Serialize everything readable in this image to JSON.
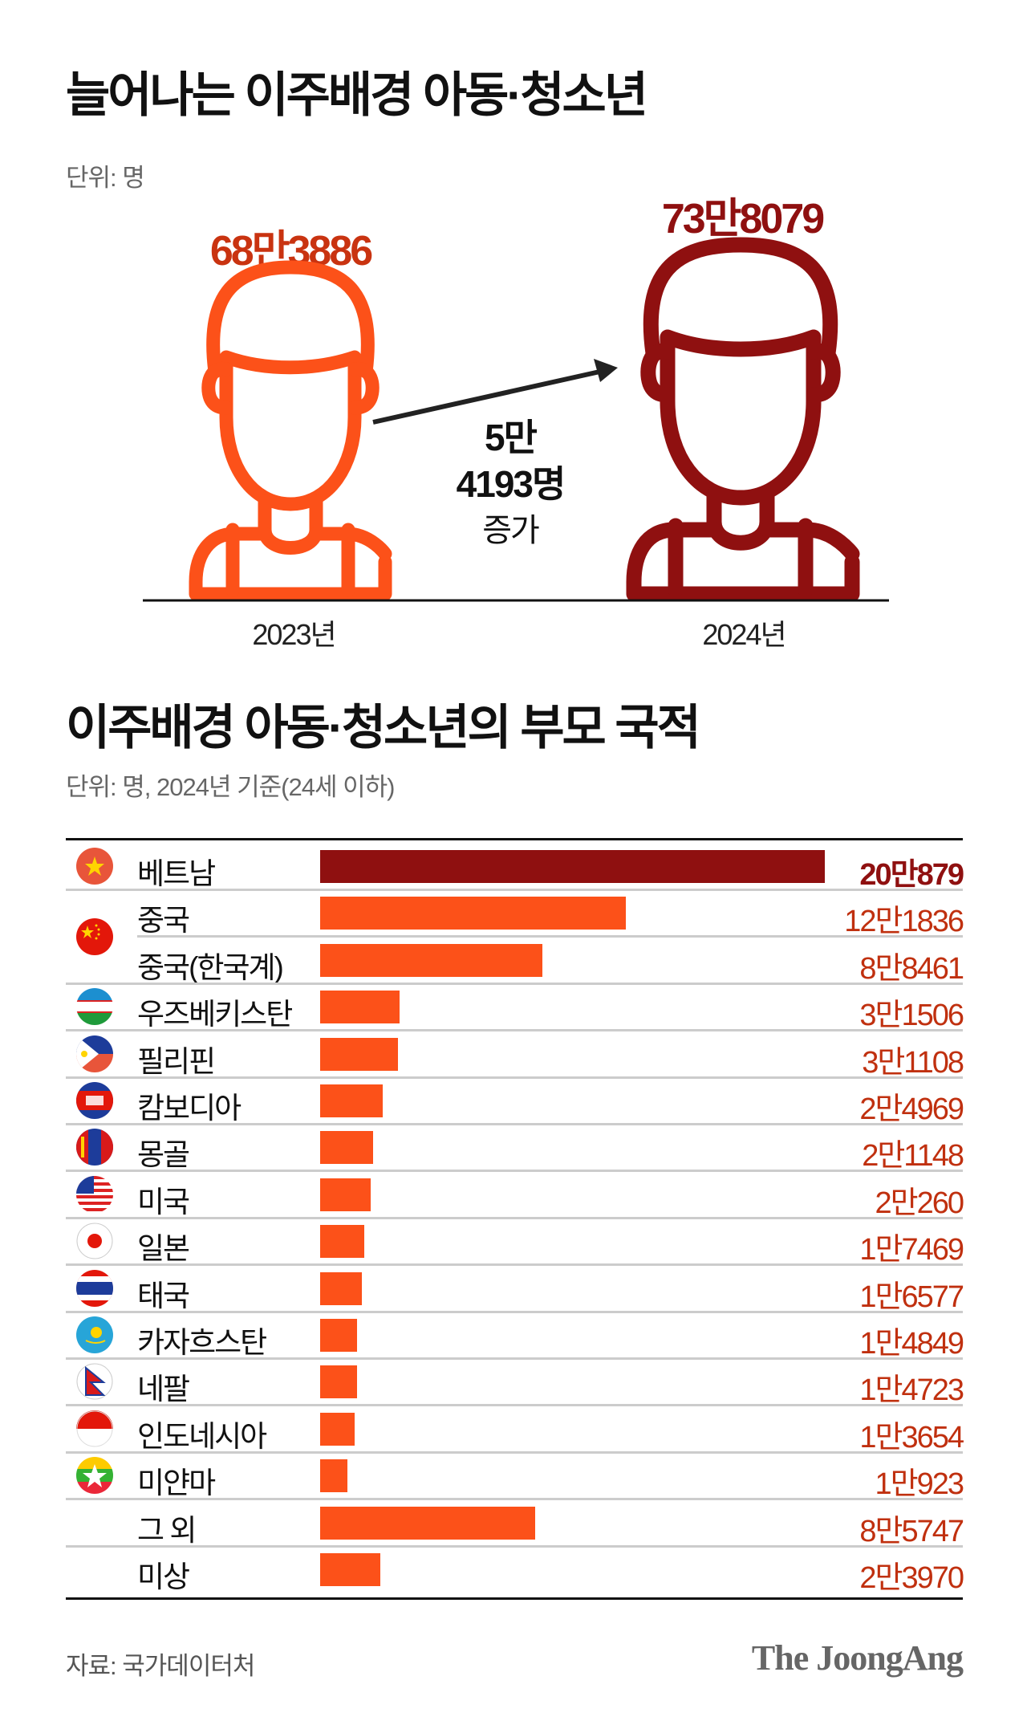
{
  "section1": {
    "title": "늘어나는 이주배경 아동·청소년",
    "unit": "단위: 명",
    "year_2023_value": "68만3886",
    "year_2024_value": "73만8079",
    "year_2023_label": "2023년",
    "year_2024_label": "2024년",
    "increase_line1": "5만",
    "increase_line2": "4193명",
    "increase_line3": "증가",
    "colors": {
      "2023": "#fc5119",
      "2024": "#8f1010"
    }
  },
  "section2": {
    "title": "이주배경 아동·청소년의 부모 국적",
    "unit": "단위: 명, 2024년 기준(24세 이하)"
  },
  "chart_data": {
    "type": "bar",
    "orientation": "horizontal",
    "title": "이주배경 아동·청소년의 부모 국적",
    "unit": "명",
    "rows": [
      {
        "label": "베트남",
        "value": 200879,
        "display": "20만879",
        "flag": "vietnam-flag-icon",
        "highlight": true
      },
      {
        "label": "중국",
        "value": 121836,
        "display": "12만1836",
        "flag": "china-flag-icon"
      },
      {
        "label": "중국(한국계)",
        "value": 88461,
        "display": "8만8461",
        "flag": null
      },
      {
        "label": "우즈베키스탄",
        "value": 31506,
        "display": "3만1506",
        "flag": "uzbekistan-flag-icon"
      },
      {
        "label": "필리핀",
        "value": 31108,
        "display": "3만1108",
        "flag": "philippines-flag-icon"
      },
      {
        "label": "캄보디아",
        "value": 24969,
        "display": "2만4969",
        "flag": "cambodia-flag-icon"
      },
      {
        "label": "몽골",
        "value": 21148,
        "display": "2만1148",
        "flag": "mongolia-flag-icon"
      },
      {
        "label": "미국",
        "value": 20260,
        "display": "2만260",
        "flag": "usa-flag-icon"
      },
      {
        "label": "일본",
        "value": 17469,
        "display": "1만7469",
        "flag": "japan-flag-icon"
      },
      {
        "label": "태국",
        "value": 16577,
        "display": "1만6577",
        "flag": "thailand-flag-icon"
      },
      {
        "label": "카자흐스탄",
        "value": 14849,
        "display": "1만4849",
        "flag": "kazakhstan-flag-icon"
      },
      {
        "label": "네팔",
        "value": 14723,
        "display": "1만4723",
        "flag": "nepal-flag-icon"
      },
      {
        "label": "인도네시아",
        "value": 13654,
        "display": "1만3654",
        "flag": "indonesia-flag-icon"
      },
      {
        "label": "미얀마",
        "value": 10923,
        "display": "1만923",
        "flag": "myanmar-flag-icon"
      },
      {
        "label": "그 외",
        "value": 85747,
        "display": "8만5747",
        "flag": null
      },
      {
        "label": "미상",
        "value": 23970,
        "display": "2만3970",
        "flag": null
      }
    ],
    "colors": {
      "highlight": "#8f1010",
      "default": "#fc5119",
      "value_text": "#c0300f"
    }
  },
  "footer": {
    "source": "자료: 국가데이터처",
    "logo": "The JoongAng"
  }
}
